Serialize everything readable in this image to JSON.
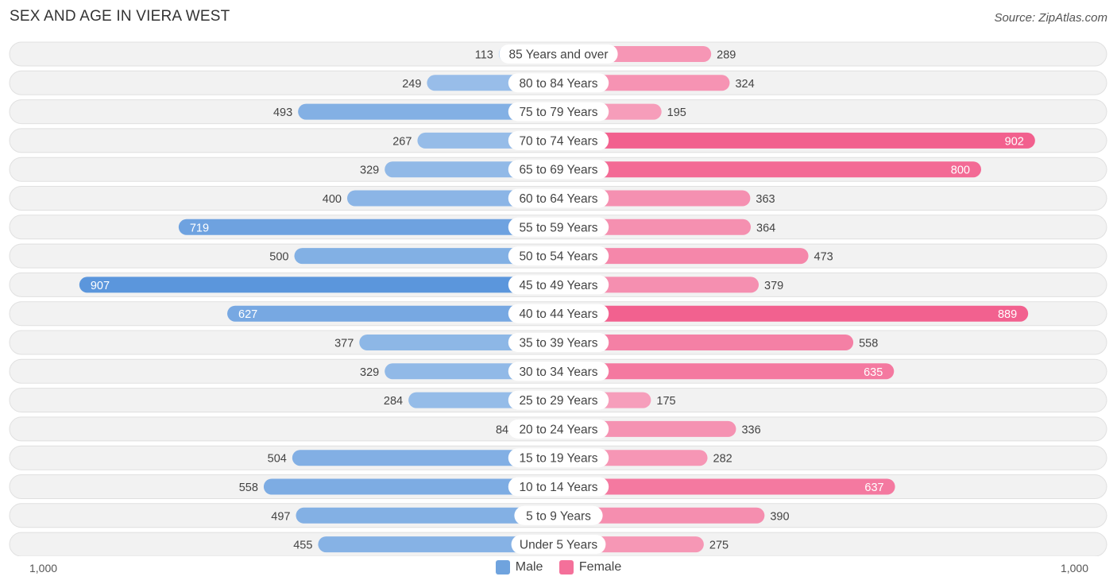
{
  "title": "SEX AND AGE IN VIERA WEST",
  "source": "Source: ZipAtlas.com",
  "legend": {
    "male_label": "Male",
    "female_label": "Female",
    "male_color": "#6fa3de",
    "female_color": "#f4709a"
  },
  "axis": {
    "left_label": "1,000",
    "right_label": "1,000"
  },
  "chart_data": {
    "type": "bar",
    "orientation": "horizontal-diverging",
    "title": "SEX AND AGE IN VIERA WEST",
    "categories": [
      "85 Years and over",
      "80 to 84 Years",
      "75 to 79 Years",
      "70 to 74 Years",
      "65 to 69 Years",
      "60 to 64 Years",
      "55 to 59 Years",
      "50 to 54 Years",
      "45 to 49 Years",
      "40 to 44 Years",
      "35 to 39 Years",
      "30 to 34 Years",
      "25 to 29 Years",
      "20 to 24 Years",
      "15 to 19 Years",
      "10 to 14 Years",
      "5 to 9 Years",
      "Under 5 Years"
    ],
    "series": [
      {
        "name": "Male",
        "values": [
          113,
          249,
          493,
          267,
          329,
          400,
          719,
          500,
          907,
          627,
          377,
          329,
          284,
          84,
          504,
          558,
          497,
          455
        ]
      },
      {
        "name": "Female",
        "values": [
          289,
          324,
          195,
          902,
          800,
          363,
          364,
          473,
          379,
          889,
          558,
          635,
          175,
          336,
          282,
          637,
          390,
          275
        ]
      }
    ],
    "xlim": [
      -1000,
      1000
    ],
    "tick_labels": [
      "1,000",
      "1,000"
    ],
    "legend_position": "bottom-center"
  }
}
